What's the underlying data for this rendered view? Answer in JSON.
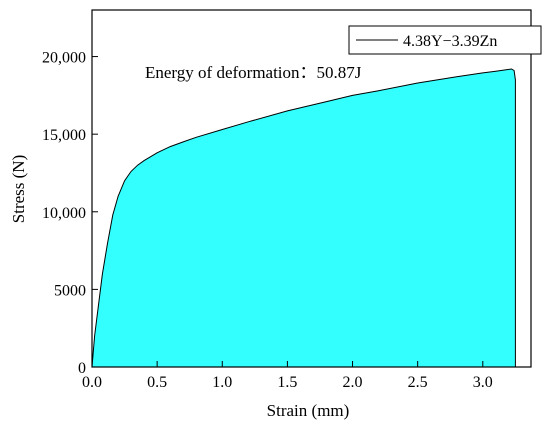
{
  "chart_data": {
    "type": "area",
    "xlabel": "Strain (mm)",
    "ylabel": "Stress (N)",
    "xlim": [
      0,
      3.37
    ],
    "ylim": [
      0,
      23000
    ],
    "x_ticks": [
      "0.0",
      "0.5",
      "1.0",
      "1.5",
      "2.0",
      "2.5",
      "3.0"
    ],
    "y_ticks": [
      "0",
      "5000",
      "10,000",
      "15,000",
      "20,000"
    ],
    "x_tick_values": [
      0,
      0.5,
      1.0,
      1.5,
      2.0,
      2.5,
      3.0
    ],
    "y_tick_values": [
      0,
      5000,
      10000,
      15000,
      20000
    ],
    "annotation": "Energy of deformation：50.87J",
    "fill_color": "#33ffff",
    "legend_placement": "top-right",
    "series": [
      {
        "name": "4.38Y−3.39Zn",
        "x": [
          0,
          0.02,
          0.05,
          0.08,
          0.12,
          0.16,
          0.2,
          0.25,
          0.3,
          0.35,
          0.4,
          0.5,
          0.6,
          0.7,
          0.8,
          1.0,
          1.2,
          1.5,
          1.8,
          2.0,
          2.2,
          2.5,
          2.8,
          3.0,
          3.1,
          3.18,
          3.22,
          3.24,
          3.25,
          3.25
        ],
        "y": [
          0,
          2000,
          4000,
          6000,
          8000,
          9800,
          11000,
          12000,
          12600,
          13000,
          13300,
          13800,
          14200,
          14500,
          14800,
          15300,
          15800,
          16500,
          17100,
          17500,
          17800,
          18300,
          18700,
          18950,
          19050,
          19150,
          19200,
          19100,
          18500,
          0
        ]
      }
    ]
  }
}
